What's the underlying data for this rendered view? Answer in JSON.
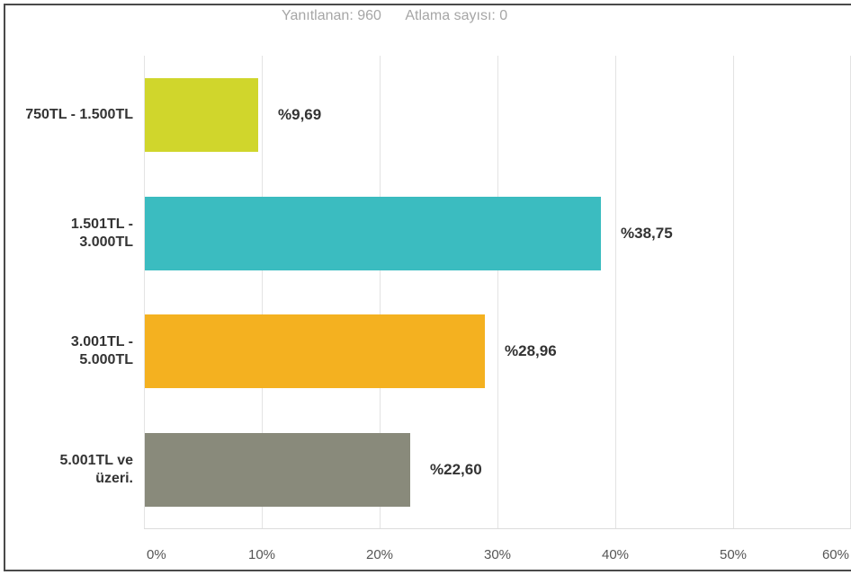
{
  "header": {
    "answered": "Yanıtlanan: 960",
    "skipped": "Atlama sayısı: 0"
  },
  "chart_data": {
    "type": "bar",
    "orientation": "horizontal",
    "categories": [
      "750TL - 1.500TL",
      "1.501TL -\n3.000TL",
      "3.001TL -\n5.000TL",
      "5.001TL ve\nüzeri."
    ],
    "values": [
      9.69,
      38.75,
      28.96,
      22.6
    ],
    "value_labels": [
      "%9,69",
      "%38,75",
      "%28,96",
      "%22,60"
    ],
    "colors": [
      "#d0d62c",
      "#3bbcc0",
      "#f4b120",
      "#898a7b"
    ],
    "xlim": [
      0,
      60
    ],
    "x_ticks": [
      0,
      10,
      20,
      30,
      40,
      50,
      60
    ],
    "x_tick_labels": [
      "0%",
      "10%",
      "20%",
      "30%",
      "40%",
      "50%",
      "60%"
    ],
    "grid": true
  }
}
